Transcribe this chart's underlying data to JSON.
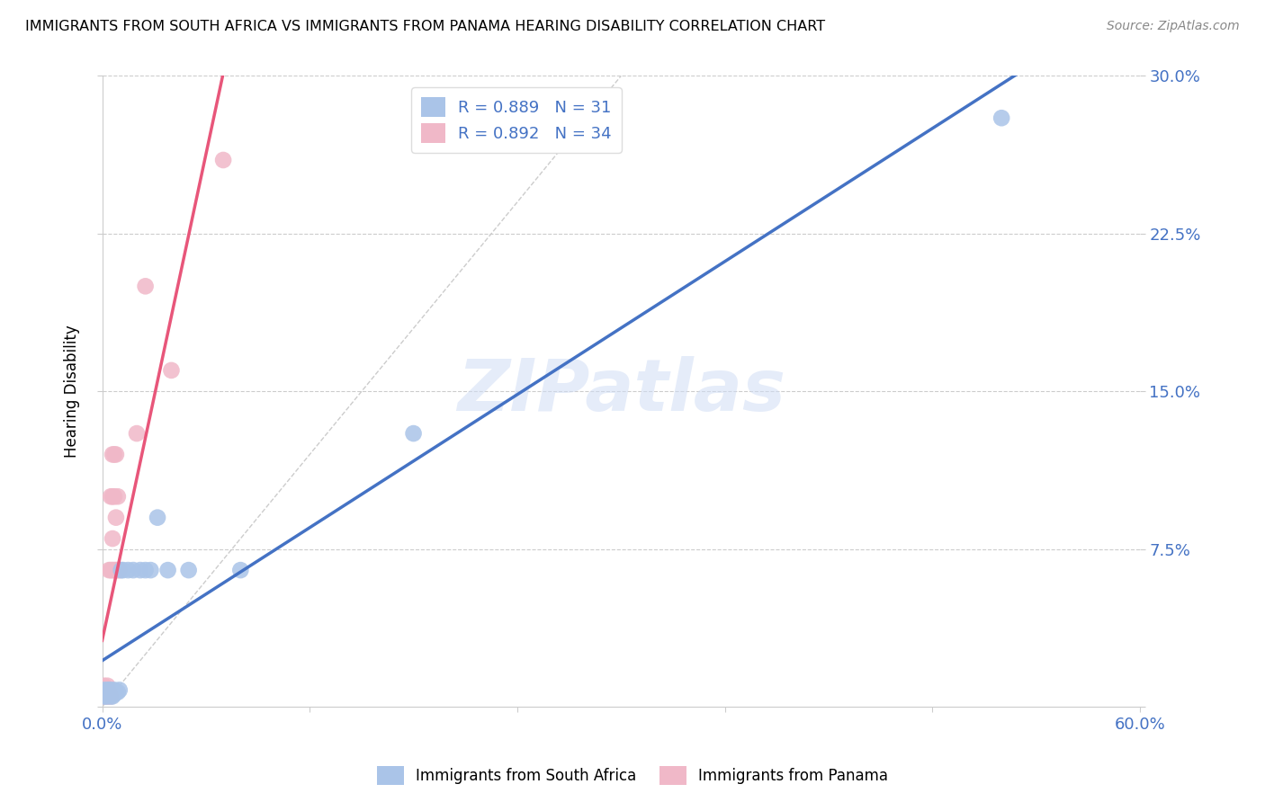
{
  "title": "IMMIGRANTS FROM SOUTH AFRICA VS IMMIGRANTS FROM PANAMA HEARING DISABILITY CORRELATION CHART",
  "source": "Source: ZipAtlas.com",
  "ylabel": "Hearing Disability",
  "xlim": [
    0.0,
    0.6
  ],
  "ylim": [
    0.0,
    0.3
  ],
  "xticks": [
    0.0,
    0.12,
    0.24,
    0.36,
    0.48,
    0.6
  ],
  "yticks": [
    0.0,
    0.075,
    0.15,
    0.225,
    0.3
  ],
  "ytick_labels": [
    "",
    "7.5%",
    "15.0%",
    "22.5%",
    "30.0%"
  ],
  "xtick_labels": [
    "0.0%",
    "",
    "",
    "",
    "",
    "60.0%"
  ],
  "south_africa_color": "#aac4e8",
  "panama_color": "#f0b8c8",
  "south_africa_R": 0.889,
  "south_africa_N": 31,
  "panama_R": 0.892,
  "panama_N": 34,
  "legend_R_color": "#4472c4",
  "watermark": "ZIPatlas",
  "south_africa_line_color": "#4472c4",
  "panama_line_color": "#e8567a",
  "south_africa_x": [
    0.001,
    0.001,
    0.002,
    0.002,
    0.003,
    0.003,
    0.004,
    0.004,
    0.004,
    0.005,
    0.005,
    0.006,
    0.006,
    0.007,
    0.007,
    0.008,
    0.009,
    0.01,
    0.011,
    0.012,
    0.015,
    0.018,
    0.022,
    0.025,
    0.028,
    0.032,
    0.038,
    0.05,
    0.08,
    0.18,
    0.52
  ],
  "south_africa_y": [
    0.005,
    0.008,
    0.005,
    0.007,
    0.005,
    0.008,
    0.006,
    0.007,
    0.008,
    0.005,
    0.008,
    0.005,
    0.007,
    0.006,
    0.008,
    0.007,
    0.007,
    0.008,
    0.065,
    0.065,
    0.065,
    0.065,
    0.065,
    0.065,
    0.065,
    0.09,
    0.065,
    0.065,
    0.065,
    0.13,
    0.28
  ],
  "panama_x": [
    0.001,
    0.001,
    0.001,
    0.001,
    0.002,
    0.002,
    0.002,
    0.003,
    0.003,
    0.003,
    0.003,
    0.004,
    0.004,
    0.004,
    0.005,
    0.005,
    0.005,
    0.006,
    0.006,
    0.006,
    0.006,
    0.007,
    0.007,
    0.007,
    0.008,
    0.008,
    0.008,
    0.009,
    0.009,
    0.01,
    0.02,
    0.025,
    0.04,
    0.07
  ],
  "panama_y": [
    0.005,
    0.007,
    0.008,
    0.01,
    0.005,
    0.007,
    0.009,
    0.005,
    0.007,
    0.008,
    0.01,
    0.005,
    0.007,
    0.065,
    0.005,
    0.065,
    0.1,
    0.065,
    0.08,
    0.1,
    0.12,
    0.065,
    0.1,
    0.12,
    0.065,
    0.09,
    0.12,
    0.065,
    0.1,
    0.065,
    0.13,
    0.2,
    0.16,
    0.26
  ],
  "sa_line_x": [
    0.0,
    0.6
  ],
  "sa_line_y": [
    0.0,
    0.3
  ],
  "pan_line_x": [
    0.0,
    0.07
  ],
  "pan_line_y": [
    0.0,
    0.26
  ]
}
